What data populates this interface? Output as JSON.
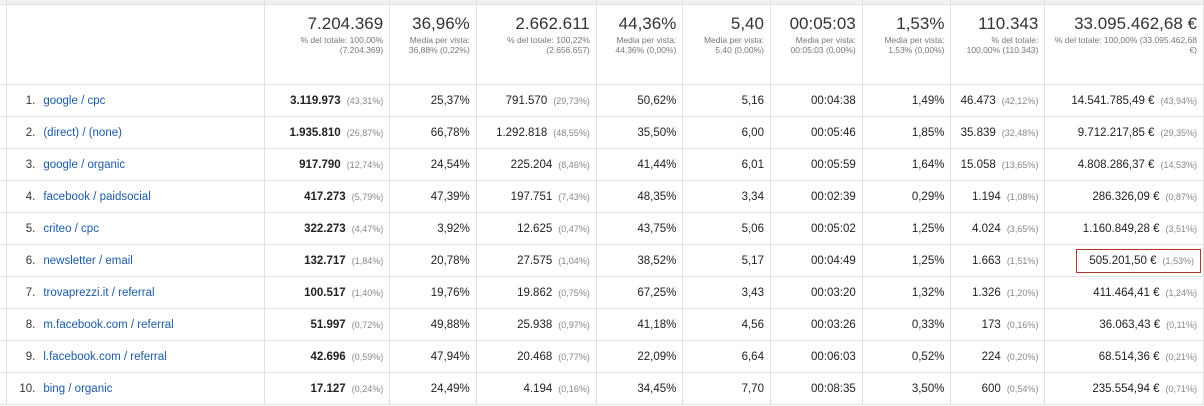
{
  "totals": [
    {
      "big": "7.204.369",
      "small": "% del totale: 100,00% (7.204.369)"
    },
    {
      "big": "36,96%",
      "small": "Media per vista: 36,88% (0,22%)"
    },
    {
      "big": "2.662.611",
      "small": "% del totale: 100,22% (2.656.657)"
    },
    {
      "big": "44,36%",
      "small": "Media per vista: 44,36% (0,00%)"
    },
    {
      "big": "5,40",
      "small": "Media per vista: 5,40 (0,00%)"
    },
    {
      "big": "00:05:03",
      "small": "Media per vista: 00:05:03 (0,00%)"
    },
    {
      "big": "1,53%",
      "small": "Media per vista: 1,53% (0,00%)"
    },
    {
      "big": "110.343",
      "small": "% del totale: 100,00% (110.343)"
    },
    {
      "big": "33.095.462,68 €",
      "small": "% del totale: 100,00% (33.095.462,68 €)"
    }
  ],
  "rows": [
    {
      "idx": "1.",
      "dim": "google / cpc",
      "users": "3.119.973",
      "users_pct": "(43,31%)",
      "bounce": "25,37%",
      "sessions": "791.570",
      "sessions_pct": "(29,73%)",
      "conv": "50,62%",
      "pages": "5,16",
      "dur": "00:04:38",
      "rate": "1,49%",
      "trans": "46.473",
      "trans_pct": "(42,12%)",
      "rev": "14.541.785,49 €",
      "rev_pct": "(43,94%)"
    },
    {
      "idx": "2.",
      "dim": "(direct) / (none)",
      "users": "1.935.810",
      "users_pct": "(26,87%)",
      "bounce": "66,78%",
      "sessions": "1.292.818",
      "sessions_pct": "(48,55%)",
      "conv": "35,50%",
      "pages": "6,00",
      "dur": "00:05:46",
      "rate": "1,85%",
      "trans": "35.839",
      "trans_pct": "(32,48%)",
      "rev": "9.712.217,85 €",
      "rev_pct": "(29,35%)"
    },
    {
      "idx": "3.",
      "dim": "google / organic",
      "users": "917.790",
      "users_pct": "(12,74%)",
      "bounce": "24,54%",
      "sessions": "225.204",
      "sessions_pct": "(8,46%)",
      "conv": "41,44%",
      "pages": "6,01",
      "dur": "00:05:59",
      "rate": "1,64%",
      "trans": "15.058",
      "trans_pct": "(13,65%)",
      "rev": "4.808.286,37 €",
      "rev_pct": "(14,53%)"
    },
    {
      "idx": "4.",
      "dim": "facebook / paidsocial",
      "users": "417.273",
      "users_pct": "(5,79%)",
      "bounce": "47,39%",
      "sessions": "197.751",
      "sessions_pct": "(7,43%)",
      "conv": "48,35%",
      "pages": "3,34",
      "dur": "00:02:39",
      "rate": "0,29%",
      "trans": "1.194",
      "trans_pct": "(1,08%)",
      "rev": "286.326,09 €",
      "rev_pct": "(0,87%)"
    },
    {
      "idx": "5.",
      "dim": "criteo / cpc",
      "users": "322.273",
      "users_pct": "(4,47%)",
      "bounce": "3,92%",
      "sessions": "12.625",
      "sessions_pct": "(0,47%)",
      "conv": "43,75%",
      "pages": "5,06",
      "dur": "00:05:02",
      "rate": "1,25%",
      "trans": "4.024",
      "trans_pct": "(3,65%)",
      "rev": "1.160.849,28 €",
      "rev_pct": "(3,51%)"
    },
    {
      "idx": "6.",
      "dim": "newsletter / email",
      "users": "132.717",
      "users_pct": "(1,84%)",
      "bounce": "20,78%",
      "sessions": "27.575",
      "sessions_pct": "(1,04%)",
      "conv": "38,52%",
      "pages": "5,17",
      "dur": "00:04:49",
      "rate": "1,25%",
      "trans": "1.663",
      "trans_pct": "(1,51%)",
      "rev": "505.201,50 €",
      "rev_pct": "(1,53%)"
    },
    {
      "idx": "7.",
      "dim": "trovaprezzi.it / referral",
      "users": "100.517",
      "users_pct": "(1,40%)",
      "bounce": "19,76%",
      "sessions": "19.862",
      "sessions_pct": "(0,75%)",
      "conv": "67,25%",
      "pages": "3,43",
      "dur": "00:03:20",
      "rate": "1,32%",
      "trans": "1.326",
      "trans_pct": "(1,20%)",
      "rev": "411.464,41 €",
      "rev_pct": "(1,24%)"
    },
    {
      "idx": "8.",
      "dim": "m.facebook.com / referral",
      "users": "51.997",
      "users_pct": "(0,72%)",
      "bounce": "49,88%",
      "sessions": "25.938",
      "sessions_pct": "(0,97%)",
      "conv": "41,18%",
      "pages": "4,56",
      "dur": "00:03:26",
      "rate": "0,33%",
      "trans": "173",
      "trans_pct": "(0,16%)",
      "rev": "36.063,43 €",
      "rev_pct": "(0,11%)"
    },
    {
      "idx": "9.",
      "dim": "l.facebook.com / referral",
      "users": "42.696",
      "users_pct": "(0,59%)",
      "bounce": "47,94%",
      "sessions": "20.468",
      "sessions_pct": "(0,77%)",
      "conv": "22,09%",
      "pages": "6,64",
      "dur": "00:06:03",
      "rate": "0,52%",
      "trans": "224",
      "trans_pct": "(0,20%)",
      "rev": "68.514,36 €",
      "rev_pct": "(0,21%)"
    },
    {
      "idx": "10.",
      "dim": "bing / organic",
      "users": "17.127",
      "users_pct": "(0,24%)",
      "bounce": "24,49%",
      "sessions": "4.194",
      "sessions_pct": "(0,16%)",
      "conv": "34,45%",
      "pages": "7,70",
      "dur": "00:08:35",
      "rate": "3,50%",
      "trans": "600",
      "trans_pct": "(0,54%)",
      "rev": "235.554,94 €",
      "rev_pct": "(0,71%)"
    }
  ],
  "highlight_row_index": 5
}
